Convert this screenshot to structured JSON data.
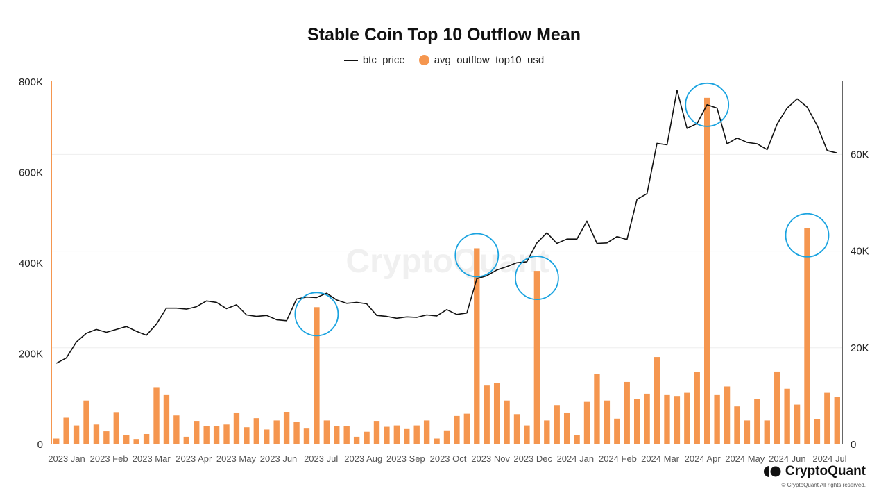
{
  "chart_data": {
    "type": "bar+line",
    "title": "Stable Coin Top 10 Outflow Mean",
    "watermark": "CryptoQuant",
    "legend": {
      "position": "top-center",
      "items": [
        {
          "label": "btc_price",
          "kind": "line",
          "color": "#111111"
        },
        {
          "label": "avg_outflow_top10_usd",
          "kind": "dot",
          "color": "#F5964F"
        }
      ]
    },
    "left_axis": {
      "series": "avg_outflow_top10_usd",
      "range": [
        0,
        800000
      ],
      "ticks": [
        0,
        200000,
        400000,
        600000,
        800000
      ],
      "tick_labels": [
        "0",
        "200K",
        "400K",
        "600K",
        "800K"
      ]
    },
    "right_axis": {
      "series": "btc_price",
      "range": [
        0,
        75000
      ],
      "ticks": [
        0,
        20000,
        40000,
        60000
      ],
      "tick_labels": [
        "0",
        "20K",
        "40K",
        "60K"
      ]
    },
    "x_axis": {
      "labels": [
        "2023 Jan",
        "2023 Feb",
        "2023 Mar",
        "2023 Apr",
        "2023 May",
        "2023 Jun",
        "2023 Jul",
        "2023 Aug",
        "2023 Sep",
        "2023 Oct",
        "2023 Nov",
        "2023 Dec",
        "2024 Jan",
        "2024 Feb",
        "2024 Mar",
        "2024 Apr",
        "2024 May",
        "2024 Jun",
        "2024 Jul"
      ]
    },
    "grid": true,
    "series": [
      {
        "name": "avg_outflow_top10_usd",
        "type": "bar",
        "color": "#F5964F",
        "values": [
          13000,
          59000,
          42000,
          97000,
          44000,
          29000,
          70000,
          21000,
          12000,
          23000,
          125000,
          109000,
          64000,
          17000,
          52000,
          40000,
          40000,
          44000,
          69000,
          38000,
          58000,
          33000,
          53000,
          72000,
          50000,
          35000,
          303000,
          53000,
          40000,
          41000,
          17000,
          28000,
          52000,
          39000,
          42000,
          34000,
          42000,
          53000,
          13000,
          31000,
          63000,
          68000,
          433000,
          130000,
          136000,
          97000,
          67000,
          42000,
          383000,
          53000,
          87000,
          69000,
          21000,
          94000,
          155000,
          97000,
          57000,
          138000,
          101000,
          112000,
          193000,
          109000,
          107000,
          114000,
          160000,
          765000,
          109000,
          128000,
          84000,
          53000,
          101000,
          53000,
          161000,
          123000,
          88000,
          477000,
          56000,
          114000,
          105000
        ]
      },
      {
        "name": "btc_price",
        "type": "line",
        "color": "#111111",
        "values": [
          16800,
          17900,
          21200,
          23000,
          23800,
          23200,
          23800,
          24400,
          23400,
          22600,
          24900,
          28200,
          28200,
          28000,
          28500,
          29700,
          29400,
          28100,
          28900,
          26800,
          26500,
          26700,
          25800,
          25600,
          30100,
          30500,
          30400,
          31300,
          29900,
          29200,
          29400,
          29100,
          26700,
          26500,
          26100,
          26400,
          26300,
          26800,
          26600,
          27900,
          26900,
          27200,
          34300,
          34900,
          36100,
          36800,
          37600,
          37800,
          41700,
          43800,
          41600,
          42500,
          42500,
          46200,
          41600,
          41700,
          43000,
          42400,
          50700,
          51900,
          62300,
          62000,
          73300,
          65400,
          66400,
          70300,
          69600,
          62200,
          63400,
          62500,
          62200,
          61000,
          66300,
          69600,
          71500,
          69800,
          66000,
          60800,
          60300
        ]
      }
    ],
    "annotations": [
      {
        "type": "circle",
        "target_series": "avg_outflow_top10_usd",
        "index": 26,
        "color": "#1AA3E0"
      },
      {
        "type": "circle",
        "target_series": "avg_outflow_top10_usd",
        "index": 42,
        "color": "#1AA3E0"
      },
      {
        "type": "circle",
        "target_series": "avg_outflow_top10_usd",
        "index": 48,
        "color": "#1AA3E0"
      },
      {
        "type": "circle",
        "target_series": "avg_outflow_top10_usd",
        "index": 65,
        "color": "#1AA3E0"
      },
      {
        "type": "circle",
        "target_series": "avg_outflow_top10_usd",
        "index": 75,
        "color": "#1AA3E0"
      }
    ]
  },
  "footer": {
    "brand": "CryptoQuant",
    "copyright": "© CryptoQuant All rights reserved."
  }
}
